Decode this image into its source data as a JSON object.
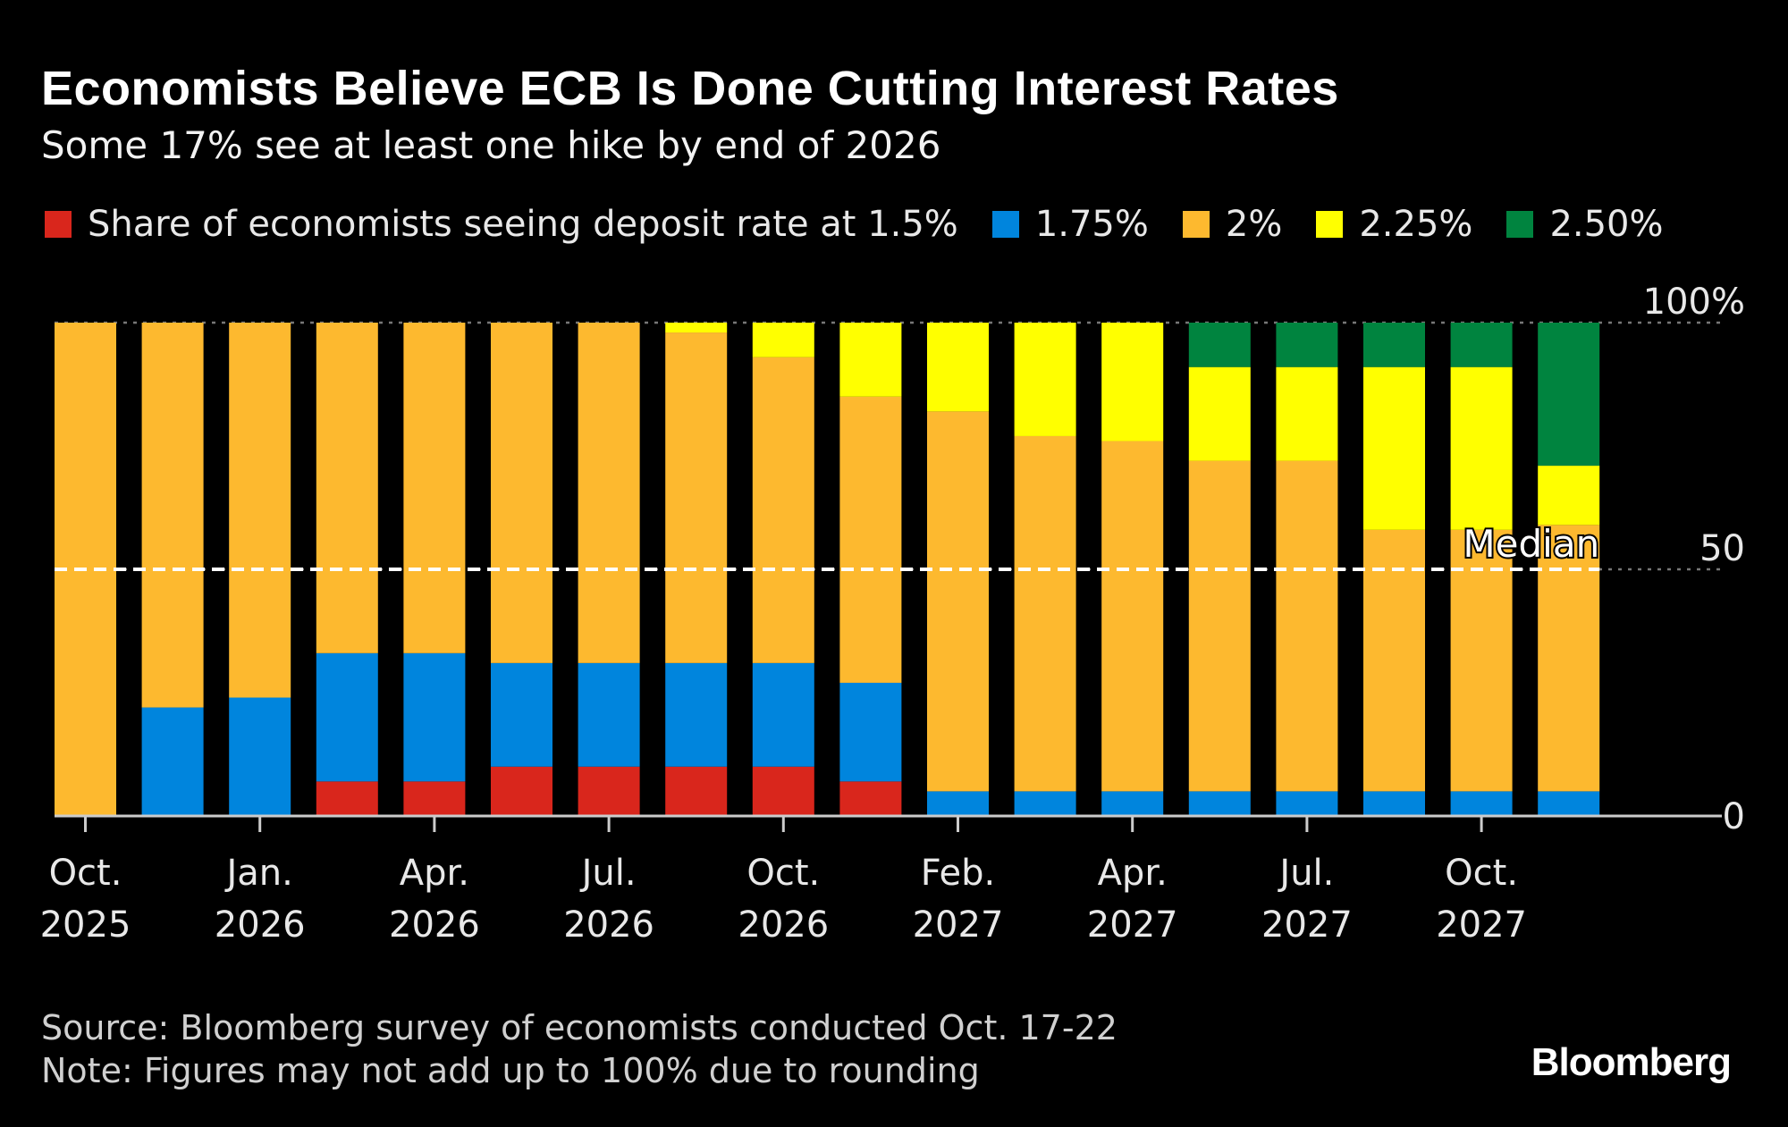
{
  "chart_data": {
    "type": "bar",
    "stacked": true,
    "title": "Economists Believe ECB Is Done Cutting Interest Rates",
    "subtitle": "Some 17% see at least one hike by end of 2026",
    "ylim": [
      0,
      100
    ],
    "y_ticks": [
      "0",
      "50",
      "100%"
    ],
    "y_tick_values": [
      0,
      50,
      100
    ],
    "grid": true,
    "legend_placement": "top",
    "x_ticks": [
      {
        "bar": 0,
        "line1": "Oct.",
        "line2": "2025"
      },
      {
        "bar": 2,
        "line1": "Jan.",
        "line2": "2026"
      },
      {
        "bar": 4,
        "line1": "Apr.",
        "line2": "2026"
      },
      {
        "bar": 6,
        "line1": "Jul.",
        "line2": "2026"
      },
      {
        "bar": 8,
        "line1": "Oct.",
        "line2": "2026"
      },
      {
        "bar": 10,
        "line1": "Feb.",
        "line2": "2027"
      },
      {
        "bar": 12,
        "line1": "Apr.",
        "line2": "2027"
      },
      {
        "bar": 14,
        "line1": "Jul.",
        "line2": "2027"
      },
      {
        "bar": 16,
        "line1": "Oct.",
        "line2": "2027"
      }
    ],
    "series": [
      {
        "name": "Share of economists seeing deposit rate at 1.5%",
        "color": "#d9261c",
        "values": [
          0,
          0,
          0,
          7,
          7,
          10,
          10,
          10,
          10,
          7,
          0,
          0,
          0,
          0,
          0,
          0,
          0,
          0
        ]
      },
      {
        "name": "1.75%",
        "color": "#0085dd",
        "values": [
          0,
          22,
          24,
          26,
          26,
          21,
          21,
          21,
          21,
          20,
          5,
          5,
          5,
          5,
          5,
          5,
          5,
          5
        ]
      },
      {
        "name": "2%",
        "color": "#fdb92f",
        "values": [
          100,
          78,
          76,
          67,
          67,
          69,
          69,
          67,
          62,
          58,
          77,
          72,
          71,
          67,
          67,
          53,
          53,
          54
        ]
      },
      {
        "name": "2.25%",
        "color": "#ffff00",
        "values": [
          0,
          0,
          0,
          0,
          0,
          0,
          0,
          2,
          7,
          15,
          18,
          23,
          24,
          19,
          19,
          33,
          33,
          12
        ]
      },
      {
        "name": "2.50%",
        "color": "#00843f",
        "values": [
          0,
          0,
          0,
          0,
          0,
          0,
          0,
          0,
          0,
          0,
          0,
          0,
          0,
          9,
          9,
          9,
          9,
          29
        ]
      }
    ],
    "annotations": [
      {
        "label": "Median",
        "y": 50,
        "style": "dashed white line"
      }
    ]
  },
  "footer": {
    "source": "Source: Bloomberg survey of economists conducted Oct. 17-22",
    "note": "Note: Figures may not add up to 100% due to rounding",
    "logo": "Bloomberg"
  }
}
